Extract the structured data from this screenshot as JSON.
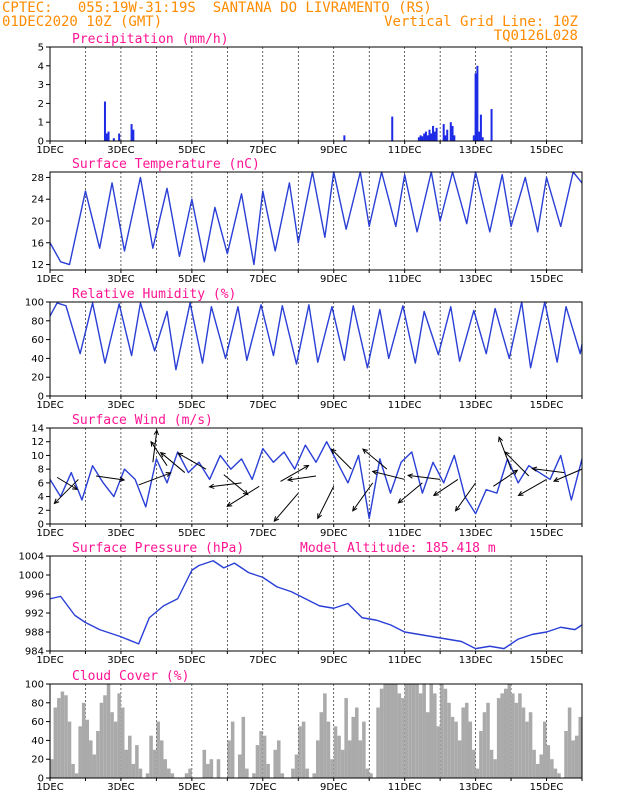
{
  "header": {
    "line1_left": "CPTEC:   055:19W-31:19S  SANTANA DO LIVRAMENTO (RS)",
    "line2_left": "01DEC2020 10Z (GMT)",
    "line2_right": "Vertical Grid Line: 10Z",
    "line3_right": "TQ0126L028"
  },
  "colors": {
    "line": "#2a3fd6",
    "bar": "#1e2be6",
    "cloud": "#aaaaaa",
    "title": "#ff1493",
    "header": "#ff8c00"
  },
  "chart_data": [
    {
      "type": "bar",
      "title": "Precipitation (mm/h)",
      "ylim": [
        0,
        5
      ],
      "yticks": [
        0,
        1,
        2,
        3,
        4,
        5
      ],
      "xlim": [
        1,
        16
      ],
      "xticks": [
        "1DEC",
        "3DEC",
        "5DEC",
        "7DEC",
        "9DEC",
        "11DEC",
        "13DEC",
        "15DEC"
      ],
      "x": [
        2.55,
        2.6,
        2.65,
        2.8,
        2.95,
        3.3,
        3.35,
        9.3,
        10.65,
        11.4,
        11.45,
        11.5,
        11.55,
        11.6,
        11.65,
        11.7,
        11.75,
        11.8,
        11.85,
        11.9,
        12.1,
        12.15,
        12.2,
        12.3,
        12.35,
        12.4,
        12.95,
        13.0,
        13.05,
        13.1,
        13.15,
        13.2,
        13.45
      ],
      "values": [
        2.1,
        0.4,
        0.5,
        0.15,
        0.4,
        0.9,
        0.6,
        0.3,
        1.3,
        0.2,
        0.3,
        0.25,
        0.4,
        0.5,
        0.3,
        0.6,
        0.4,
        0.8,
        0.5,
        0.7,
        0.9,
        0.3,
        0.6,
        1.0,
        0.8,
        0.3,
        0.3,
        3.6,
        4.0,
        0.5,
        1.4,
        0.2,
        1.7
      ]
    },
    {
      "type": "line",
      "title": "Surface Temperature (nC)",
      "ylim": [
        11,
        29
      ],
      "yticks": [
        12,
        16,
        20,
        24,
        28
      ],
      "xlim": [
        1,
        16
      ],
      "xticks": [
        "1DEC",
        "3DEC",
        "5DEC",
        "7DEC",
        "9DEC",
        "11DEC",
        "13DEC",
        "15DEC"
      ],
      "x": [
        1.0,
        1.3,
        1.55,
        2.0,
        2.4,
        2.75,
        3.1,
        3.55,
        3.9,
        4.3,
        4.65,
        5.0,
        5.35,
        5.65,
        6.0,
        6.4,
        6.75,
        7.0,
        7.35,
        7.75,
        8.0,
        8.4,
        8.75,
        9.0,
        9.35,
        9.75,
        10.0,
        10.35,
        10.75,
        11.0,
        11.35,
        11.75,
        12.0,
        12.35,
        12.75,
        13.0,
        13.4,
        13.75,
        14.0,
        14.4,
        14.75,
        15.0,
        15.4,
        15.75,
        16.0
      ],
      "values": [
        16,
        12.5,
        12,
        25.5,
        15,
        27,
        14.5,
        28,
        15,
        26,
        13.5,
        24,
        12.5,
        22.5,
        14,
        25,
        12,
        25.5,
        14.5,
        27,
        16,
        29,
        17,
        29,
        18.5,
        29,
        19,
        29,
        19,
        28.5,
        18,
        29,
        20,
        29,
        19.5,
        29,
        18,
        28.5,
        19,
        28,
        18,
        28,
        19,
        29,
        27
      ]
    },
    {
      "type": "line",
      "title": "Relative Humidity (%)",
      "ylim": [
        0,
        100
      ],
      "yticks": [
        0,
        20,
        40,
        60,
        80,
        100
      ],
      "xlim": [
        1,
        16
      ],
      "xticks": [
        "1DEC",
        "3DEC",
        "5DEC",
        "7DEC",
        "9DEC",
        "11DEC",
        "13DEC",
        "15DEC"
      ],
      "x": [
        1.0,
        1.2,
        1.45,
        1.85,
        2.2,
        2.55,
        2.95,
        3.3,
        3.55,
        3.95,
        4.3,
        4.55,
        4.95,
        5.3,
        5.55,
        5.95,
        6.3,
        6.55,
        6.95,
        7.3,
        7.55,
        7.95,
        8.3,
        8.55,
        8.95,
        9.3,
        9.55,
        9.95,
        10.3,
        10.55,
        10.95,
        11.3,
        11.55,
        11.95,
        12.3,
        12.55,
        12.95,
        13.3,
        13.55,
        13.95,
        14.3,
        14.55,
        14.95,
        15.3,
        15.55,
        15.95,
        16.0
      ],
      "values": [
        85,
        99,
        96,
        45,
        99,
        35,
        98,
        43,
        99,
        48,
        90,
        28,
        99,
        35,
        95,
        40,
        95,
        38,
        97,
        43,
        96,
        34,
        97,
        36,
        95,
        38,
        96,
        30,
        92,
        40,
        96,
        35,
        90,
        44,
        95,
        37,
        91,
        45,
        93,
        40,
        100,
        30,
        100,
        36,
        95,
        45,
        55
      ]
    },
    {
      "type": "line",
      "title": "Surface Wind (m/s)",
      "ylim": [
        0,
        14
      ],
      "yticks": [
        0,
        2,
        4,
        6,
        8,
        10,
        12,
        14
      ],
      "xlim": [
        1,
        16
      ],
      "xticks": [
        "1DEC",
        "3DEC",
        "5DEC",
        "7DEC",
        "9DEC",
        "11DEC",
        "13DEC",
        "15DEC"
      ],
      "x": [
        1.0,
        1.3,
        1.6,
        1.9,
        2.2,
        2.5,
        2.8,
        3.1,
        3.4,
        3.7,
        4.0,
        4.3,
        4.6,
        4.9,
        5.2,
        5.5,
        5.8,
        6.1,
        6.4,
        6.7,
        7.0,
        7.3,
        7.6,
        7.9,
        8.2,
        8.5,
        8.8,
        9.1,
        9.4,
        9.7,
        10.0,
        10.3,
        10.6,
        10.9,
        11.2,
        11.5,
        11.8,
        12.1,
        12.4,
        12.7,
        13.0,
        13.3,
        13.6,
        13.9,
        14.2,
        14.5,
        14.8,
        15.1,
        15.4,
        15.7,
        16.0
      ],
      "values": [
        6.5,
        4,
        7.5,
        3.5,
        8.5,
        6,
        4,
        8,
        6.5,
        2.5,
        9.5,
        6,
        10.5,
        7.5,
        9,
        6.5,
        10,
        8,
        9.5,
        6.5,
        11,
        9,
        10.5,
        8,
        11.5,
        9,
        12,
        9,
        6,
        10,
        0.8,
        9.5,
        4.5,
        9,
        10.5,
        4.5,
        9,
        6,
        10,
        4,
        1.5,
        5,
        4.5,
        9.5,
        6,
        8.5,
        7.5,
        6.5,
        10,
        3.5,
        9.5
      ],
      "arrows": [
        {
          "x": 1.2,
          "y": 6.8,
          "u": 0.25,
          "v": -0.15
        },
        {
          "x": 1.8,
          "y": 6.5,
          "u": -0.3,
          "v": -0.3
        },
        {
          "x": 2.3,
          "y": 7.0,
          "u": 0.35,
          "v": -0.05
        },
        {
          "x": 3.5,
          "y": 5.7,
          "u": 0.4,
          "v": 0.15
        },
        {
          "x": 3.9,
          "y": 9.0,
          "u": 0.05,
          "v": 0.4
        },
        {
          "x": 4.3,
          "y": 8.5,
          "u": -0.2,
          "v": 0.3
        },
        {
          "x": 4.8,
          "y": 7.5,
          "u": -0.3,
          "v": 0.25
        },
        {
          "x": 5.4,
          "y": 8.0,
          "u": -0.35,
          "v": 0.2
        },
        {
          "x": 5.9,
          "y": 7.2,
          "u": 0.3,
          "v": -0.25
        },
        {
          "x": 6.4,
          "y": 6.0,
          "u": -0.4,
          "v": -0.05
        },
        {
          "x": 6.9,
          "y": 5.5,
          "u": -0.4,
          "v": -0.25
        },
        {
          "x": 7.5,
          "y": 6.2,
          "u": 0.35,
          "v": 0.2
        },
        {
          "x": 8.0,
          "y": 4.5,
          "u": -0.3,
          "v": -0.35
        },
        {
          "x": 8.5,
          "y": 7.0,
          "u": -0.35,
          "v": -0.05
        },
        {
          "x": 9.0,
          "y": 5.5,
          "u": -0.2,
          "v": -0.4
        },
        {
          "x": 9.5,
          "y": 8.0,
          "u": -0.25,
          "v": 0.25
        },
        {
          "x": 10.1,
          "y": 6.0,
          "u": -0.25,
          "v": -0.35
        },
        {
          "x": 10.5,
          "y": 8.0,
          "u": -0.3,
          "v": 0.25
        },
        {
          "x": 11.0,
          "y": 6.5,
          "u": -0.4,
          "v": 0.1
        },
        {
          "x": 11.5,
          "y": 6.0,
          "u": -0.3,
          "v": -0.25
        },
        {
          "x": 12.0,
          "y": 6.5,
          "u": -0.4,
          "v": 0.05
        },
        {
          "x": 12.5,
          "y": 6.5,
          "u": -0.3,
          "v": -0.2
        },
        {
          "x": 13.0,
          "y": 6.0,
          "u": -0.25,
          "v": -0.35
        },
        {
          "x": 13.5,
          "y": 5.5,
          "u": 0.3,
          "v": 0.2
        },
        {
          "x": 14.0,
          "y": 8.0,
          "u": -0.15,
          "v": 0.4
        },
        {
          "x": 14.5,
          "y": 7.0,
          "u": -0.3,
          "v": 0.3
        },
        {
          "x": 15.0,
          "y": 6.5,
          "u": -0.35,
          "v": -0.2
        },
        {
          "x": 15.5,
          "y": 7.5,
          "u": -0.4,
          "v": 0.05
        },
        {
          "x": 16.0,
          "y": 8.0,
          "u": -0.35,
          "v": -0.15
        }
      ]
    },
    {
      "type": "line",
      "title": "Surface Pressure (hPa)",
      "annotation": "Model Altitude: 185.418  m",
      "ylim": [
        984,
        1004
      ],
      "yticks": [
        984,
        988,
        992,
        996,
        1000,
        1004
      ],
      "xlim": [
        1,
        16
      ],
      "xticks": [
        "1DEC",
        "3DEC",
        "5DEC",
        "7DEC",
        "9DEC",
        "11DEC",
        "13DEC",
        "15DEC"
      ],
      "x": [
        1.0,
        1.3,
        1.7,
        2.0,
        2.4,
        2.8,
        3.0,
        3.5,
        3.8,
        4.2,
        4.6,
        5.0,
        5.2,
        5.6,
        5.9,
        6.2,
        6.6,
        7.0,
        7.4,
        7.8,
        8.2,
        8.6,
        9.0,
        9.4,
        9.8,
        10.2,
        10.6,
        11.0,
        11.4,
        11.8,
        12.2,
        12.6,
        13.0,
        13.4,
        13.8,
        14.2,
        14.6,
        15.0,
        15.4,
        15.8,
        16.0
      ],
      "values": [
        995,
        995.5,
        991.5,
        990,
        988.5,
        987.5,
        987,
        985.5,
        991,
        993.5,
        995,
        1001,
        1002,
        1003,
        1001.5,
        1002.5,
        1000.5,
        999.5,
        997.5,
        996.5,
        995,
        993.5,
        993,
        994,
        991,
        990.5,
        989.5,
        988,
        987.5,
        987,
        986.5,
        986,
        984.5,
        985,
        984.5,
        986.5,
        987.5,
        988,
        989,
        988.5,
        989.5
      ]
    },
    {
      "type": "bar",
      "title": "Cloud Cover (%)",
      "ylim": [
        0,
        100
      ],
      "yticks": [
        0,
        20,
        40,
        60,
        80,
        100
      ],
      "xlim": [
        1,
        16
      ],
      "xticks": [
        "1DEC",
        "3DEC",
        "5DEC",
        "7DEC",
        "9DEC",
        "11DEC",
        "13DEC",
        "15DEC"
      ],
      "x": [
        1.0,
        1.1,
        1.2,
        1.3,
        1.4,
        1.5,
        1.6,
        1.7,
        1.8,
        1.9,
        2.0,
        2.1,
        2.2,
        2.3,
        2.4,
        2.5,
        2.6,
        2.7,
        2.8,
        2.9,
        3.0,
        3.1,
        3.2,
        3.3,
        3.4,
        3.5,
        3.6,
        3.7,
        3.8,
        3.9,
        4.0,
        4.1,
        4.2,
        4.3,
        4.4,
        4.5,
        4.6,
        4.7,
        4.8,
        4.9,
        5.0,
        5.1,
        5.2,
        5.3,
        5.4,
        5.5,
        5.6,
        5.7,
        5.8,
        5.9,
        6.0,
        6.1,
        6.2,
        6.3,
        6.4,
        6.5,
        6.6,
        6.7,
        6.8,
        6.9,
        7.0,
        7.1,
        7.2,
        7.3,
        7.4,
        7.5,
        7.6,
        7.7,
        7.8,
        7.9,
        8.0,
        8.1,
        8.2,
        8.3,
        8.4,
        8.5,
        8.6,
        8.7,
        8.8,
        8.9,
        9.0,
        9.1,
        9.2,
        9.3,
        9.4,
        9.5,
        9.6,
        9.7,
        9.8,
        9.9,
        10.0,
        10.1,
        10.2,
        10.3,
        10.4,
        10.5,
        10.6,
        10.7,
        10.8,
        10.9,
        11.0,
        11.1,
        11.2,
        11.3,
        11.4,
        11.5,
        11.6,
        11.7,
        11.8,
        11.9,
        12.0,
        12.1,
        12.2,
        12.3,
        12.4,
        12.5,
        12.6,
        12.7,
        12.8,
        12.9,
        13.0,
        13.1,
        13.2,
        13.3,
        13.4,
        13.5,
        13.6,
        13.7,
        13.8,
        13.9,
        14.0,
        14.1,
        14.2,
        14.3,
        14.4,
        14.5,
        14.6,
        14.7,
        14.8,
        14.9,
        15.0,
        15.1,
        15.2,
        15.3,
        15.4,
        15.5,
        15.6,
        15.7,
        15.8,
        15.9
      ],
      "values": [
        20,
        75,
        85,
        92,
        88,
        60,
        15,
        5,
        55,
        80,
        62,
        40,
        25,
        50,
        80,
        88,
        100,
        70,
        60,
        90,
        75,
        30,
        45,
        15,
        35,
        10,
        0,
        5,
        45,
        30,
        60,
        40,
        20,
        10,
        5,
        0,
        0,
        0,
        5,
        10,
        0,
        0,
        0,
        30,
        15,
        20,
        0,
        20,
        0,
        0,
        40,
        60,
        0,
        25,
        65,
        10,
        0,
        5,
        35,
        50,
        45,
        15,
        0,
        30,
        40,
        5,
        0,
        0,
        10,
        25,
        55,
        60,
        10,
        0,
        5,
        40,
        70,
        90,
        60,
        20,
        55,
        45,
        30,
        85,
        40,
        65,
        75,
        40,
        60,
        10,
        5,
        0,
        75,
        95,
        100,
        100,
        100,
        100,
        90,
        85,
        100,
        100,
        100,
        100,
        90,
        100,
        70,
        100,
        90,
        55,
        100,
        95,
        80,
        65,
        60,
        40,
        75,
        80,
        60,
        30,
        10,
        50,
        70,
        80,
        30,
        20,
        85,
        90,
        95,
        100,
        90,
        80,
        90,
        75,
        60,
        70,
        30,
        15,
        25,
        60,
        35,
        20,
        10,
        5,
        0,
        50,
        75,
        40,
        45,
        65
      ]
    }
  ]
}
